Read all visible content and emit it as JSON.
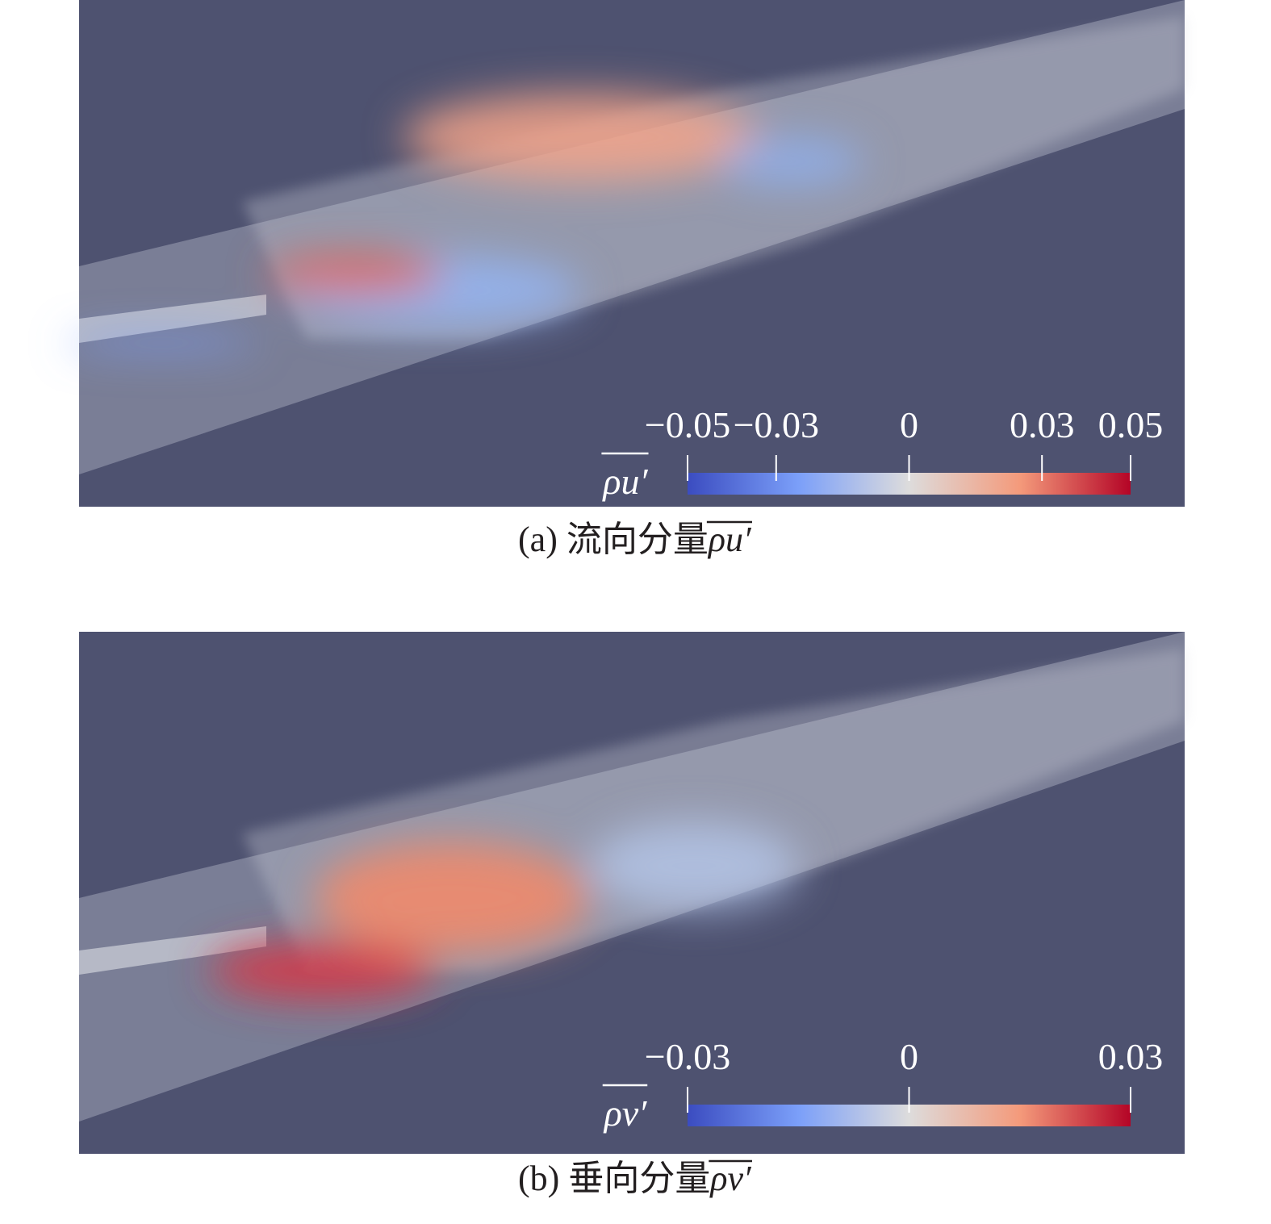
{
  "panels": [
    {
      "caption": "(a) 流向分量",
      "quantity": "ρu′",
      "colorbar": {
        "range": [
          -0.05,
          0.05
        ],
        "ticks": [
          {
            "value": -0.05,
            "label": "−0.05"
          },
          {
            "value": -0.03,
            "label": "−0.03"
          },
          0,
          0.03,
          0.05
        ]
      }
    },
    {
      "caption": "(b) 垂向分量",
      "quantity": "ρv′",
      "colorbar": {
        "range": [
          -0.03,
          0.03
        ],
        "ticks": [
          {
            "value": -0.03,
            "label": "−0.03"
          },
          0,
          0.03
        ]
      }
    }
  ]
}
